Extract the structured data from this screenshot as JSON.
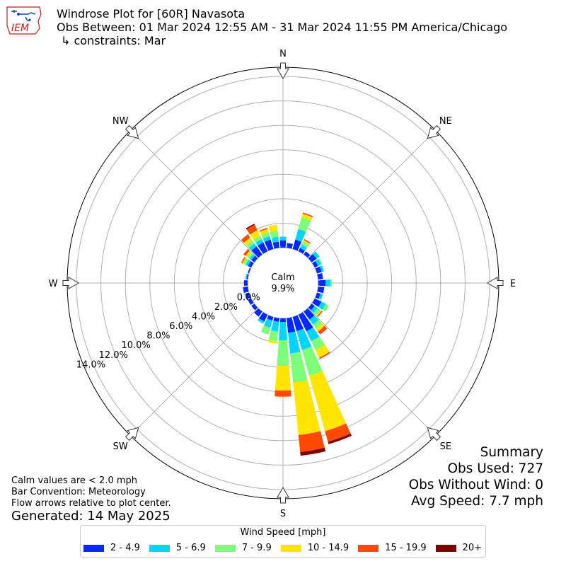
{
  "header": {
    "title": "Windrose Plot for [60R] Navasota",
    "obs_between": "Obs Between: 01 Mar 2024 12:55 AM - 31 Mar 2024 11:55 PM America/Chicago",
    "constraints": "↳ constraints: Mar"
  },
  "logo": {
    "text": "IEM"
  },
  "footer": {
    "note_calm": "Calm values are < 2.0 mph",
    "note_bar": "Bar Convention: Meteorology",
    "note_flow": "Flow arrows relative to plot center.",
    "generated": "Generated: 14 May 2025"
  },
  "summary": {
    "title": "Summary",
    "obs_used": "Obs Used: 727",
    "obs_without_wind": "Obs Without Wind: 0",
    "avg_speed": "Avg Speed: 7.7 mph"
  },
  "center": {
    "calm_label": "Calm",
    "calm_value": "9.9%"
  },
  "legend": {
    "title": "Wind Speed [mph]",
    "items": [
      {
        "label": "2 - 4.9",
        "color": "#0029ff"
      },
      {
        "label": "5 - 6.9",
        "color": "#00d4ff"
      },
      {
        "label": "7 - 9.9",
        "color": "#7dff7a"
      },
      {
        "label": "10 - 14.9",
        "color": "#ffe500"
      },
      {
        "label": "15 - 19.9",
        "color": "#ff4a00"
      },
      {
        "label": "20+",
        "color": "#800000"
      }
    ]
  },
  "chart_data": {
    "type": "windrose",
    "calm_percent": 9.9,
    "radial_ticks": [
      "0.0%",
      "2.0%",
      "4.0%",
      "6.0%",
      "8.0%",
      "10.0%",
      "12.0%",
      "14.0%"
    ],
    "rmax": 15,
    "directions": [
      "N",
      "NE",
      "E",
      "SE",
      "S",
      "SW",
      "W",
      "NW"
    ],
    "speed_bins": [
      "2 - 4.9",
      "5 - 6.9",
      "7 - 9.9",
      "10 - 14.9",
      "15 - 19.9",
      "20+"
    ],
    "bin_colors": [
      "#0029ff",
      "#00d4ff",
      "#7dff7a",
      "#ffe500",
      "#ff4a00",
      "#800000"
    ],
    "sectors": [
      {
        "dir": 0,
        "values": [
          0.6,
          0.3,
          0.0,
          0.0,
          0.0,
          0.0
        ]
      },
      {
        "dir": 10,
        "values": [
          0.4,
          0.0,
          0.0,
          0.0,
          0.0,
          0.0
        ]
      },
      {
        "dir": 20,
        "values": [
          0.8,
          0.9,
          1.0,
          0.3,
          0.1,
          0.0
        ]
      },
      {
        "dir": 30,
        "values": [
          0.3,
          0.3,
          0.3,
          0.1,
          0.1,
          0.0
        ]
      },
      {
        "dir": 40,
        "values": [
          0.3,
          0.0,
          0.0,
          0.0,
          0.0,
          0.0
        ]
      },
      {
        "dir": 50,
        "values": [
          0.5,
          0.3,
          0.0,
          0.0,
          0.0,
          0.0
        ]
      },
      {
        "dir": 60,
        "values": [
          0.3,
          0.3,
          0.1,
          0.0,
          0.0,
          0.0
        ]
      },
      {
        "dir": 70,
        "values": [
          0.4,
          0.2,
          0.0,
          0.0,
          0.0,
          0.0
        ]
      },
      {
        "dir": 80,
        "values": [
          0.4,
          0.0,
          0.0,
          0.0,
          0.0,
          0.0
        ]
      },
      {
        "dir": 90,
        "values": [
          0.6,
          0.4,
          0.1,
          0.0,
          0.0,
          0.0
        ]
      },
      {
        "dir": 100,
        "values": [
          0.5,
          0.0,
          0.0,
          0.0,
          0.0,
          0.0
        ]
      },
      {
        "dir": 110,
        "values": [
          0.3,
          0.2,
          0.0,
          0.0,
          0.0,
          0.0
        ]
      },
      {
        "dir": 120,
        "values": [
          0.6,
          0.4,
          0.3,
          0.0,
          0.0,
          0.0
        ]
      },
      {
        "dir": 130,
        "values": [
          0.3,
          0.3,
          0.3,
          0.1,
          0.1,
          0.0
        ]
      },
      {
        "dir": 140,
        "values": [
          0.8,
          0.5,
          0.4,
          0.3,
          0.3,
          0.0
        ]
      },
      {
        "dir": 150,
        "values": [
          1.5,
          0.9,
          0.8,
          0.7,
          0.1,
          0.0
        ]
      },
      {
        "dir": 160,
        "values": [
          1.2,
          1.6,
          2.2,
          4.7,
          0.9,
          0.2
        ]
      },
      {
        "dir": 170,
        "values": [
          1.2,
          1.7,
          2.4,
          4.3,
          1.4,
          0.3
        ]
      },
      {
        "dir": 180,
        "values": [
          0.3,
          1.5,
          2.1,
          2.0,
          0.5,
          0.0
        ]
      },
      {
        "dir": 190,
        "values": [
          0.3,
          0.8,
          0.8,
          0.2,
          0.0,
          0.0
        ]
      },
      {
        "dir": 200,
        "values": [
          0.3,
          0.6,
          0.6,
          0.0,
          0.0,
          0.0
        ]
      },
      {
        "dir": 210,
        "values": [
          0.6,
          0.2,
          0.0,
          0.0,
          0.0,
          0.0
        ]
      },
      {
        "dir": 220,
        "values": [
          0.5,
          0.0,
          0.0,
          0.0,
          0.0,
          0.0
        ]
      },
      {
        "dir": 230,
        "values": [
          0.3,
          0.0,
          0.0,
          0.0,
          0.0,
          0.0
        ]
      },
      {
        "dir": 240,
        "values": [
          0.3,
          0.0,
          0.0,
          0.0,
          0.0,
          0.0
        ]
      },
      {
        "dir": 250,
        "values": [
          0.3,
          0.1,
          0.0,
          0.0,
          0.0,
          0.0
        ]
      },
      {
        "dir": 260,
        "values": [
          0.4,
          0.0,
          0.0,
          0.0,
          0.0,
          0.0
        ]
      },
      {
        "dir": 270,
        "values": [
          0.3,
          0.0,
          0.0,
          0.0,
          0.0,
          0.0
        ]
      },
      {
        "dir": 280,
        "values": [
          0.1,
          0.1,
          0.0,
          0.0,
          0.0,
          0.0
        ]
      },
      {
        "dir": 290,
        "values": [
          0.1,
          0.0,
          0.0,
          0.0,
          0.0,
          0.0
        ]
      },
      {
        "dir": 300,
        "values": [
          0.3,
          0.2,
          0.2,
          0.1,
          0.1,
          0.0
        ]
      },
      {
        "dir": 310,
        "values": [
          0.3,
          0.2,
          0.2,
          0.2,
          0.2,
          0.0
        ]
      },
      {
        "dir": 320,
        "values": [
          0.8,
          0.3,
          0.3,
          0.3,
          0.3,
          0.0
        ]
      },
      {
        "dir": 330,
        "values": [
          0.8,
          0.3,
          0.3,
          0.5,
          0.5,
          0.1
        ]
      },
      {
        "dir": 340,
        "values": [
          0.8,
          0.3,
          0.3,
          0.3,
          0.1,
          0.0
        ]
      },
      {
        "dir": 350,
        "values": [
          0.5,
          0.4,
          0.5,
          0.5,
          0.0,
          0.0
        ]
      }
    ]
  }
}
